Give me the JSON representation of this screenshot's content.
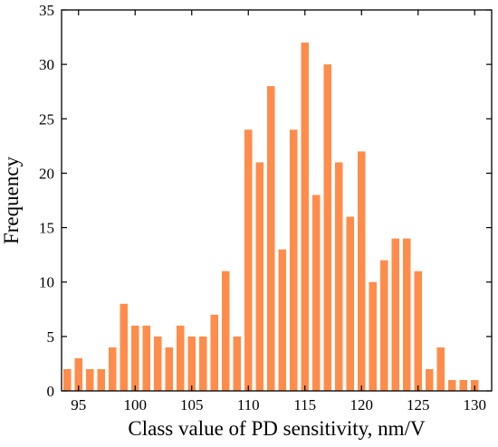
{
  "chart_data": {
    "type": "bar",
    "title": "",
    "xlabel": "Class value of PD sensitivity, nm/V",
    "ylabel": "Frequency",
    "xlim": [
      93.5,
      131.5
    ],
    "ylim": [
      0,
      35
    ],
    "xticks": [
      95,
      100,
      105,
      110,
      115,
      120,
      125,
      130
    ],
    "yticks": [
      0,
      5,
      10,
      15,
      20,
      25,
      30,
      35
    ],
    "bar_color": "#FF8C4B",
    "grid": false,
    "x": [
      94,
      95,
      96,
      97,
      98,
      99,
      100,
      101,
      102,
      103,
      104,
      105,
      106,
      107,
      108,
      109,
      110,
      111,
      112,
      113,
      114,
      115,
      116,
      117,
      118,
      119,
      120,
      121,
      122,
      123,
      124,
      125,
      126,
      127,
      128,
      129,
      130
    ],
    "values": [
      2,
      3,
      2,
      2,
      4,
      8,
      6,
      6,
      5,
      4,
      6,
      5,
      5,
      7,
      11,
      5,
      24,
      21,
      28,
      13,
      24,
      32,
      18,
      30,
      21,
      16,
      22,
      10,
      12,
      14,
      14,
      11,
      2,
      4,
      1,
      1,
      1
    ]
  }
}
